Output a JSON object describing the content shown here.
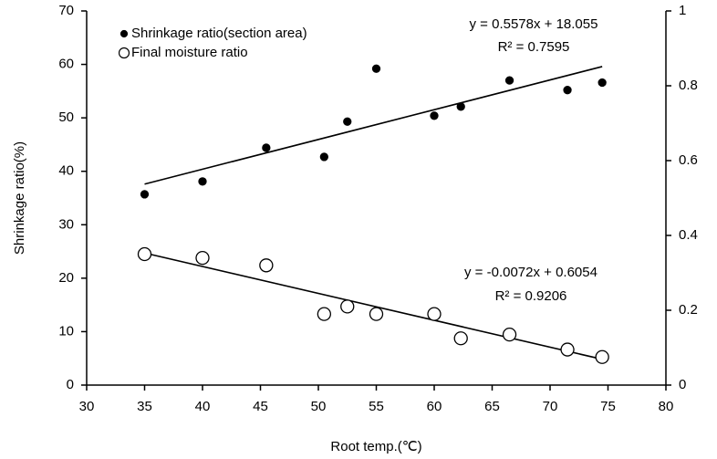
{
  "chart_data": {
    "type": "scatter",
    "xlabel": "Root temp.(℃)",
    "ylabel": "Shrinkage ratio(%)",
    "xlim": [
      30,
      80
    ],
    "xticks": [
      30,
      35,
      40,
      45,
      50,
      55,
      60,
      65,
      70,
      75,
      80
    ],
    "ylim": [
      0,
      70
    ],
    "yticks": [
      0,
      10,
      20,
      30,
      40,
      50,
      60,
      70
    ],
    "y2lim": [
      0,
      1
    ],
    "y2ticks": [
      0,
      0.2,
      0.4,
      0.6,
      0.8,
      1
    ],
    "legend": "top-left",
    "series": [
      {
        "name": "Shrinkage ratio(section area)",
        "marker": "filled",
        "color": "#000000",
        "x": [
          35,
          40,
          45.5,
          50.5,
          52.5,
          55,
          60,
          62.3,
          66.5,
          71.5,
          74.5
        ],
        "values": [
          35.7,
          38.1,
          44.4,
          42.7,
          49.3,
          59.2,
          50.4,
          52.1,
          57.0,
          55.2,
          56.6
        ],
        "trendline": {
          "x": [
            35,
            74.5
          ],
          "values": [
            37.6,
            59.6
          ]
        },
        "equation": "y = 0.5578x + 18.055",
        "r2": "R² = 0.7595"
      },
      {
        "name": "Final moisture ratio",
        "marker": "open",
        "color": "#000000",
        "axis": "y2",
        "x": [
          35,
          40,
          45.5,
          50.5,
          52.5,
          55,
          60,
          62.3,
          66.5,
          71.5,
          74.5
        ],
        "values": [
          0.35,
          0.34,
          0.32,
          0.19,
          0.21,
          0.19,
          0.19,
          0.125,
          0.135,
          0.095,
          0.075
        ],
        "trendline": {
          "x": [
            35,
            74.5
          ],
          "values": [
            0.353,
            0.069
          ]
        },
        "equation": "y = -0.0072x + 0.6054",
        "r2": "R² = 0.9206"
      }
    ]
  }
}
